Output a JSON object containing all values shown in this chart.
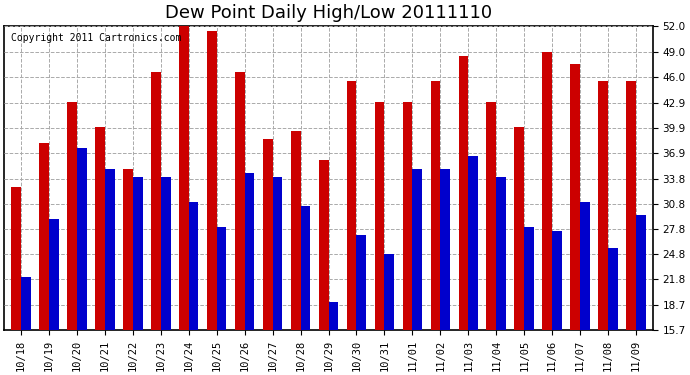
{
  "title": "Dew Point Daily High/Low 20111110",
  "copyright": "Copyright 2011 Cartronics.com",
  "dates": [
    "10/18",
    "10/19",
    "10/20",
    "10/21",
    "10/22",
    "10/23",
    "10/24",
    "10/25",
    "10/26",
    "10/27",
    "10/28",
    "10/29",
    "10/30",
    "10/31",
    "11/01",
    "11/02",
    "11/03",
    "11/04",
    "11/05",
    "11/06",
    "11/07",
    "11/08",
    "11/09"
  ],
  "highs": [
    32.8,
    38.0,
    43.0,
    40.0,
    35.0,
    46.5,
    53.0,
    51.5,
    46.5,
    38.5,
    39.5,
    36.0,
    45.5,
    43.0,
    43.0,
    45.5,
    48.5,
    43.0,
    40.0,
    49.0,
    47.5,
    45.5,
    45.5
  ],
  "lows": [
    22.0,
    29.0,
    37.5,
    35.0,
    34.0,
    34.0,
    31.0,
    28.0,
    34.5,
    34.0,
    30.5,
    19.0,
    27.0,
    24.8,
    35.0,
    35.0,
    36.5,
    34.0,
    28.0,
    27.5,
    31.0,
    25.5,
    29.5
  ],
  "high_color": "#cc0000",
  "low_color": "#0000cc",
  "ylim": [
    15.7,
    52.0
  ],
  "yticks": [
    15.7,
    18.7,
    21.8,
    24.8,
    27.8,
    30.8,
    33.8,
    36.9,
    39.9,
    42.9,
    46.0,
    49.0,
    52.0
  ],
  "bg_color": "#ffffff",
  "grid_color": "#aaaaaa",
  "bar_width": 0.35,
  "title_fontsize": 13,
  "tick_fontsize": 7.5
}
